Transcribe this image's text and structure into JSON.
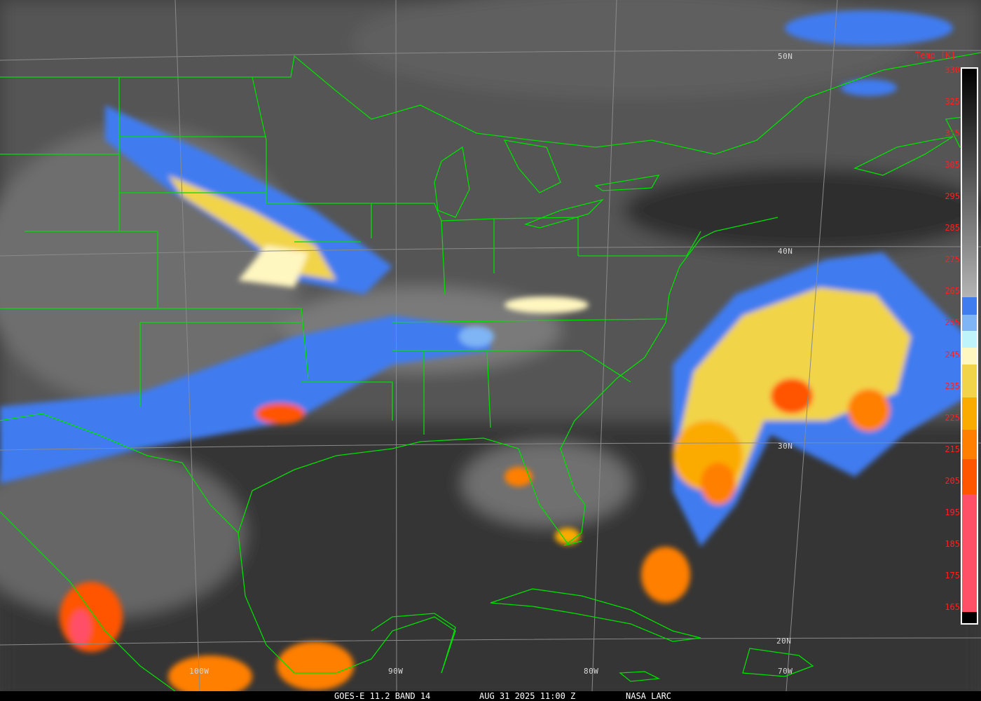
{
  "image": {
    "type": "satellite infrared imagery",
    "footer": {
      "satellite": "GOES-E 11.2 BAND 14",
      "datetime": "AUG 31 2025 11:00 Z",
      "source": "NASA LARC"
    },
    "latitude_labels": [
      "50N",
      "40N",
      "30N",
      "20N"
    ],
    "longitude_labels": [
      "100W",
      "90W",
      "80W",
      "70W"
    ],
    "colorbar": {
      "title": "Temp [K]",
      "labels": [
        "330",
        "325",
        "315",
        "305",
        "295",
        "285",
        "275",
        "265",
        "255",
        "245",
        "235",
        "225",
        "215",
        "205",
        "195",
        "185",
        "175",
        "165"
      ],
      "colors": {
        "blue": "#3f7cf0",
        "light_blue": "#7fb4f5",
        "cyan": "#bff4fb",
        "pale_yellow": "#fff6c0",
        "yellow": "#f2d44a",
        "amber": "#fbab00",
        "orange": "#ff7f00",
        "red_orange": "#ff5500",
        "pink": "#ff5068"
      }
    },
    "border_color": "#00e000"
  }
}
